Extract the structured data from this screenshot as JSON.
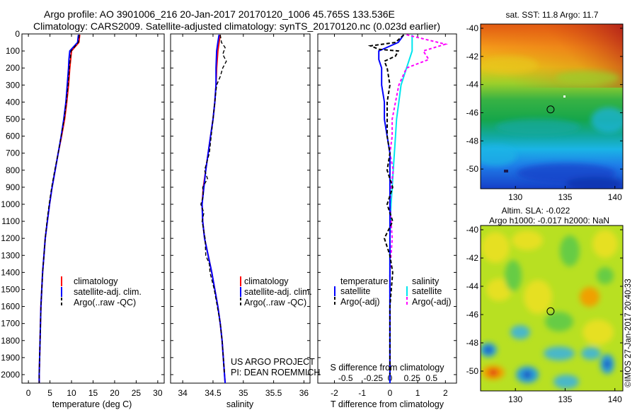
{
  "header": {
    "line1": "Argo profile: AO 3901006_216 20-Jan-2017 20170120_1006 45.765S 133.536E",
    "line2": "Climatology: CARS2009. Satellite-adjusted climatology: synTS_20170120.nc (0.023d earlier)"
  },
  "credit": "©IMOS 27-Jan-2017 20:40:33",
  "colors": {
    "climatology": "#ff0000",
    "satellite": "#0000ff",
    "argo": "#000000",
    "sal_satellite": "#00e5ee",
    "sal_argo": "#ff00ff"
  },
  "chart_data": [
    {
      "id": "temperature",
      "type": "line",
      "xlabel": "temperature (deg C)",
      "ylabel": "",
      "xlim": [
        -1.5,
        31.5
      ],
      "ylim": [
        2050,
        0
      ],
      "x_ticks": [
        0,
        5,
        10,
        15,
        20,
        25,
        30
      ],
      "y_ticks": [
        0,
        100,
        200,
        300,
        400,
        500,
        600,
        700,
        800,
        900,
        1000,
        1100,
        1200,
        1300,
        1400,
        1500,
        1600,
        1700,
        1800,
        1900,
        2000
      ],
      "legend": [
        "climatology",
        "satellite-adj. clim.",
        "Argo(..raw -QC)"
      ],
      "legend_position": "lower-right",
      "series": [
        {
          "name": "climatology",
          "color": "#ff0000",
          "depth": [
            5,
            50,
            100,
            150,
            200,
            300,
            400,
            500,
            600,
            700,
            800,
            900,
            1000,
            1100,
            1200,
            1300,
            1400,
            1500,
            1600,
            1700,
            1800,
            1900,
            2000,
            2050
          ],
          "values": [
            11.9,
            11.7,
            10.0,
            9.8,
            9.6,
            9.3,
            8.9,
            8.4,
            7.7,
            6.9,
            6.2,
            5.5,
            4.9,
            4.4,
            3.9,
            3.6,
            3.3,
            3.1,
            2.9,
            2.8,
            2.7,
            2.6,
            2.5,
            2.5
          ]
        },
        {
          "name": "satellite-adj. clim.",
          "color": "#0000ff",
          "depth": [
            5,
            50,
            100,
            150,
            200,
            300,
            400,
            500,
            600,
            700,
            800,
            900,
            1000,
            1100,
            1200,
            1300,
            1400,
            1500,
            1600,
            1700,
            1800,
            1900,
            2000,
            2050
          ],
          "values": [
            11.6,
            11.4,
            9.6,
            9.4,
            9.3,
            9.0,
            8.7,
            8.2,
            7.6,
            6.9,
            6.2,
            5.5,
            4.9,
            4.4,
            3.9,
            3.6,
            3.3,
            3.1,
            2.9,
            2.8,
            2.7,
            2.6,
            2.5,
            2.5
          ]
        },
        {
          "name": "Argo(..raw -QC)",
          "color": "#000000",
          "depth": [
            5,
            50,
            100,
            150,
            200,
            300,
            400,
            500,
            600,
            700,
            800,
            900,
            1000,
            1100,
            1200,
            1300,
            1400,
            1500,
            1600,
            1700,
            1800,
            1900,
            2000,
            2050
          ],
          "values": [
            11.8,
            11.6,
            9.9,
            9.7,
            9.5,
            9.2,
            8.8,
            8.3,
            7.6,
            6.9,
            6.1,
            5.4,
            4.8,
            4.3,
            3.9,
            3.6,
            3.3,
            3.1,
            2.9,
            2.8,
            2.7,
            2.6,
            2.5,
            2.5
          ]
        }
      ]
    },
    {
      "id": "salinity",
      "type": "line",
      "xlabel": "salinity",
      "ylabel": "",
      "xlim": [
        33.8,
        36.1
      ],
      "ylim": [
        2050,
        0
      ],
      "x_ticks": [
        34,
        34.5,
        35,
        35.5,
        36
      ],
      "legend": [
        "climatology",
        "satellite-adj. clim.",
        "Argo(..raw -QC)"
      ],
      "legend_position": "lower-right",
      "annotation": [
        "US ARGO PROJECT",
        "PI: DEAN ROEMMICH"
      ],
      "series": [
        {
          "name": "climatology",
          "color": "#ff0000",
          "depth": [
            5,
            50,
            100,
            200,
            300,
            400,
            500,
            600,
            700,
            800,
            900,
            1000,
            1100,
            1200,
            1300,
            1400,
            1500,
            1600,
            1700,
            1800,
            1900,
            2000,
            2050
          ],
          "values": [
            34.62,
            34.6,
            34.58,
            34.56,
            34.55,
            34.53,
            34.5,
            34.46,
            34.42,
            34.38,
            34.34,
            34.32,
            34.33,
            34.36,
            34.42,
            34.48,
            34.53,
            34.58,
            34.62,
            34.65,
            34.67,
            34.69,
            34.7
          ]
        },
        {
          "name": "satellite-adj. clim.",
          "color": "#0000ff",
          "depth": [
            5,
            50,
            100,
            200,
            300,
            400,
            500,
            600,
            700,
            800,
            900,
            1000,
            1100,
            1200,
            1300,
            1400,
            1500,
            1600,
            1700,
            1800,
            1900,
            2000,
            2050
          ],
          "values": [
            34.6,
            34.58,
            34.56,
            34.55,
            34.55,
            34.53,
            34.5,
            34.46,
            34.42,
            34.38,
            34.35,
            34.32,
            34.33,
            34.36,
            34.42,
            34.48,
            34.53,
            34.58,
            34.62,
            34.65,
            34.67,
            34.69,
            34.7
          ]
        },
        {
          "name": "Argo(..raw -QC)",
          "color": "#000000",
          "depth": [
            5,
            50,
            80,
            120,
            160,
            200,
            250,
            300,
            400,
            500,
            600,
            700,
            800,
            850,
            900,
            950,
            1000,
            1050,
            1100,
            1200,
            1300,
            1350,
            1400,
            1500,
            1600,
            1700,
            1800,
            1900,
            2000
          ],
          "values": [
            34.62,
            34.64,
            34.7,
            34.66,
            34.72,
            34.66,
            34.62,
            34.56,
            34.53,
            34.5,
            34.47,
            34.44,
            34.36,
            34.41,
            34.33,
            34.34,
            34.3,
            34.35,
            34.32,
            34.37,
            34.38,
            34.44,
            34.45,
            34.52,
            34.57,
            34.62,
            34.65,
            34.67,
            34.69
          ]
        }
      ]
    },
    {
      "id": "differences",
      "type": "line",
      "xlabel": "T difference from climatology",
      "x2label": "S difference from climatology",
      "xlim": [
        -2.6,
        2.4
      ],
      "x_ticks": [
        -2,
        -1,
        0,
        1,
        2
      ],
      "x2_ticks": [
        "-0.5",
        "-0.25",
        "0",
        "0.25",
        "0.5"
      ],
      "ylim": [
        2050,
        0
      ],
      "legend_left_title": "temperature",
      "legend_right_title": "salinity",
      "legend": [
        "satellite",
        "Argo(-adj)",
        "satellite",
        "Argo(-adj)"
      ],
      "series": [
        {
          "name": "temperature satellite",
          "color": "#0000ff",
          "depth": [
            5,
            50,
            100,
            150,
            200,
            300,
            400,
            500,
            600,
            700,
            800,
            900,
            1000,
            1200,
            1400,
            1600,
            1800,
            2000,
            2050
          ],
          "values": [
            0.5,
            0.3,
            -0.4,
            -0.4,
            -0.3,
            -0.3,
            -0.2,
            -0.2,
            -0.1,
            0,
            0,
            0,
            0,
            0,
            0,
            0,
            0,
            0,
            0
          ]
        },
        {
          "name": "temperature Argo(-adj)",
          "color": "#000000",
          "depth": [
            5,
            50,
            70,
            90,
            100,
            130,
            160,
            200,
            300,
            400,
            500,
            600,
            700,
            800,
            900,
            1000,
            1100,
            1200,
            1300,
            1400,
            1600,
            1800,
            2000
          ],
          "values": [
            0.5,
            0.2,
            -0.7,
            -0.4,
            0.3,
            0.2,
            -0.2,
            -0.1,
            0.0,
            -0.1,
            -0.1,
            -0.1,
            0.0,
            -0.1,
            0.1,
            -0.1,
            0.1,
            -0.2,
            0.0,
            0.1,
            0,
            0,
            0
          ]
        },
        {
          "name": "salinity satellite",
          "color": "#00e5ee",
          "depth": [
            5,
            100,
            200,
            300,
            400,
            500,
            600,
            700,
            800,
            900,
            1000,
            1200,
            1400,
            1600,
            1800,
            2000,
            2050
          ],
          "values": [
            0.2,
            0.2,
            0.15,
            0.1,
            0.08,
            0.06,
            0.05,
            0.04,
            0.03,
            0.02,
            0.01,
            0,
            0,
            0,
            0,
            0,
            0
          ]
        },
        {
          "name": "salinity Argo(-adj)",
          "color": "#ff00ff",
          "depth": [
            5,
            60,
            100,
            150,
            200,
            300,
            400,
            500,
            600,
            700,
            800,
            900,
            1000,
            1200,
            1400,
            1600,
            1800,
            2000
          ],
          "values": [
            0.15,
            0.5,
            0.3,
            0.35,
            0.15,
            0.08,
            0.05,
            0.02,
            0.02,
            0.0,
            0.03,
            0.01,
            0.0,
            0.02,
            0.0,
            0,
            0,
            0
          ]
        }
      ]
    },
    {
      "id": "sst-map",
      "type": "heatmap",
      "title": "sat. SST: 11.8  Argo: 11.7",
      "x_ticks": [
        130,
        135,
        140
      ],
      "y_ticks": [
        -40,
        -42,
        -44,
        -46,
        -48,
        -50
      ],
      "xlim": [
        126.5,
        140.8
      ],
      "ylim": [
        -51.4,
        -39.7
      ],
      "marker": {
        "lon": 133.536,
        "lat": -45.765
      }
    },
    {
      "id": "sla-map",
      "type": "heatmap",
      "title": "Altim. SLA: -0.022",
      "subtitle": "Argo h1000: -0.017 h2000: NaN",
      "x_ticks": [
        130,
        135,
        140
      ],
      "y_ticks": [
        -40,
        -42,
        -44,
        -46,
        -48,
        -50
      ],
      "xlim": [
        126.5,
        140.8
      ],
      "ylim": [
        -51.4,
        -39.7
      ],
      "marker": {
        "lon": 133.536,
        "lat": -45.765
      }
    }
  ]
}
